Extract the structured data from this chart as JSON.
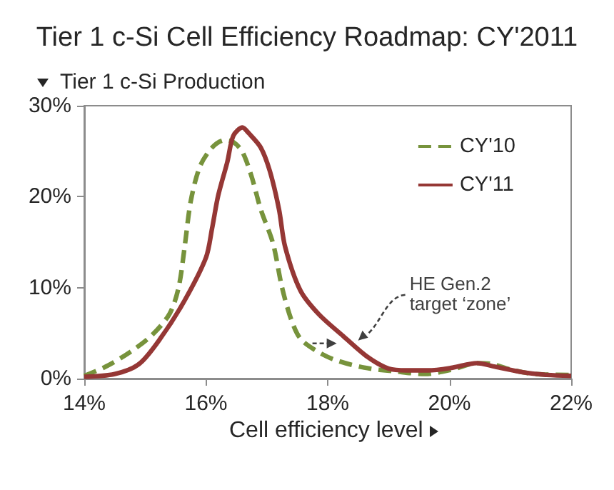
{
  "chart_data": {
    "type": "line",
    "title": "Tier 1 c-Si Cell Efficiency Roadmap: CY'2011",
    "ylabel": "Tier 1 c-Si Production",
    "xlabel": "Cell efficiency level",
    "xlim": [
      14,
      22
    ],
    "xticks": [
      {
        "value": 14,
        "label": "14%"
      },
      {
        "value": 16,
        "label": "16%"
      },
      {
        "value": 18,
        "label": "18%"
      },
      {
        "value": 20,
        "label": "20%"
      },
      {
        "value": 22,
        "label": "22%"
      }
    ],
    "ylim": [
      0,
      30
    ],
    "yticks": [
      {
        "value": 0,
        "label": "0%"
      },
      {
        "value": 10,
        "label": "10%"
      },
      {
        "value": 20,
        "label": "20%"
      },
      {
        "value": 30,
        "label": "30%"
      }
    ],
    "grid": false,
    "legend": "top right",
    "marker": "none",
    "annotations": [
      {
        "text": "HE Gen.2\ntarget ‘zone’",
        "x": 18.5,
        "y": 4.5
      }
    ],
    "series": [
      {
        "name": "CY'10",
        "color": "#77933c",
        "line_style": "dashed",
        "x": [
          14.0,
          14.35,
          14.75,
          15.1,
          15.4,
          15.55,
          15.65,
          15.75,
          15.9,
          16.1,
          16.3,
          16.45,
          16.6,
          16.75,
          16.9,
          17.1,
          17.25,
          17.4,
          17.55,
          17.8,
          18.1,
          18.6,
          19.1,
          19.6,
          20.05,
          20.45,
          20.7,
          21.0,
          21.4,
          22.0
        ],
        "values": [
          0.3,
          1.3,
          2.9,
          4.7,
          7.1,
          10.0,
          14.5,
          19.5,
          23.3,
          25.4,
          26.2,
          26.0,
          24.9,
          22.2,
          18.6,
          14.9,
          10.0,
          6.5,
          4.4,
          3.1,
          2.1,
          1.2,
          0.8,
          0.5,
          1.0,
          1.7,
          1.6,
          1.0,
          0.5,
          0.4
        ]
      },
      {
        "name": "CY'11",
        "color": "#953735",
        "line_style": "solid",
        "x": [
          14.0,
          14.5,
          14.9,
          15.25,
          15.65,
          16.0,
          16.1,
          16.2,
          16.35,
          16.45,
          16.6,
          16.7,
          16.9,
          17.05,
          17.2,
          17.3,
          17.55,
          17.85,
          18.25,
          18.65,
          19.0,
          19.3,
          19.65,
          20.05,
          20.45,
          20.75,
          21.2,
          21.6,
          22.0
        ],
        "values": [
          0.2,
          0.5,
          1.6,
          4.4,
          8.6,
          13.3,
          16.5,
          20.1,
          23.8,
          26.7,
          27.6,
          27.0,
          25.4,
          22.8,
          18.6,
          14.5,
          9.7,
          7.1,
          4.7,
          2.4,
          1.1,
          0.9,
          0.9,
          1.2,
          1.7,
          1.3,
          0.7,
          0.4,
          0.3
        ]
      }
    ]
  }
}
